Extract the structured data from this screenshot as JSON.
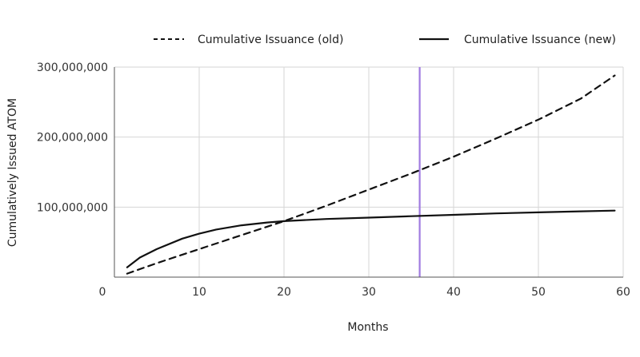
{
  "chart_data": {
    "type": "line",
    "xlabel": "Months",
    "ylabel": "Cumulatively Issued ATOM",
    "xlim": [
      0,
      60
    ],
    "ylim": [
      0,
      300000000
    ],
    "x_ticks": [
      0,
      10,
      20,
      30,
      40,
      50,
      60
    ],
    "x_tick_labels": [
      "0",
      "10",
      "20",
      "30",
      "40",
      "50",
      "60"
    ],
    "y_ticks": [
      100000000,
      200000000,
      300000000
    ],
    "y_tick_labels": [
      "100,000,000",
      "200,000,000",
      "300,000,000"
    ],
    "grid": true,
    "legend_position": "top",
    "vertical_marker": {
      "x": 36,
      "color": "#a07be0"
    },
    "series": [
      {
        "name": "Cumulative Issuance (old)",
        "style": "dashed",
        "color": "#111111",
        "x": [
          1.5,
          5,
          10,
          15,
          20,
          25,
          30,
          35,
          40,
          45,
          50,
          55,
          59
        ],
        "values": [
          5000000,
          20000000,
          40000000,
          60000000,
          80000000,
          102000000,
          125000000,
          148000000,
          172000000,
          198000000,
          225000000,
          255000000,
          288000000
        ]
      },
      {
        "name": "Cumulative Issuance (new)",
        "style": "solid",
        "color": "#111111",
        "x": [
          1.5,
          3,
          5,
          8,
          10,
          12,
          15,
          18,
          20,
          25,
          30,
          35,
          40,
          45,
          50,
          55,
          59
        ],
        "values": [
          14000000,
          28000000,
          40000000,
          55000000,
          62000000,
          68000000,
          74000000,
          78000000,
          80000000,
          83000000,
          85000000,
          87000000,
          89000000,
          91000000,
          92500000,
          94000000,
          95000000
        ]
      }
    ]
  }
}
